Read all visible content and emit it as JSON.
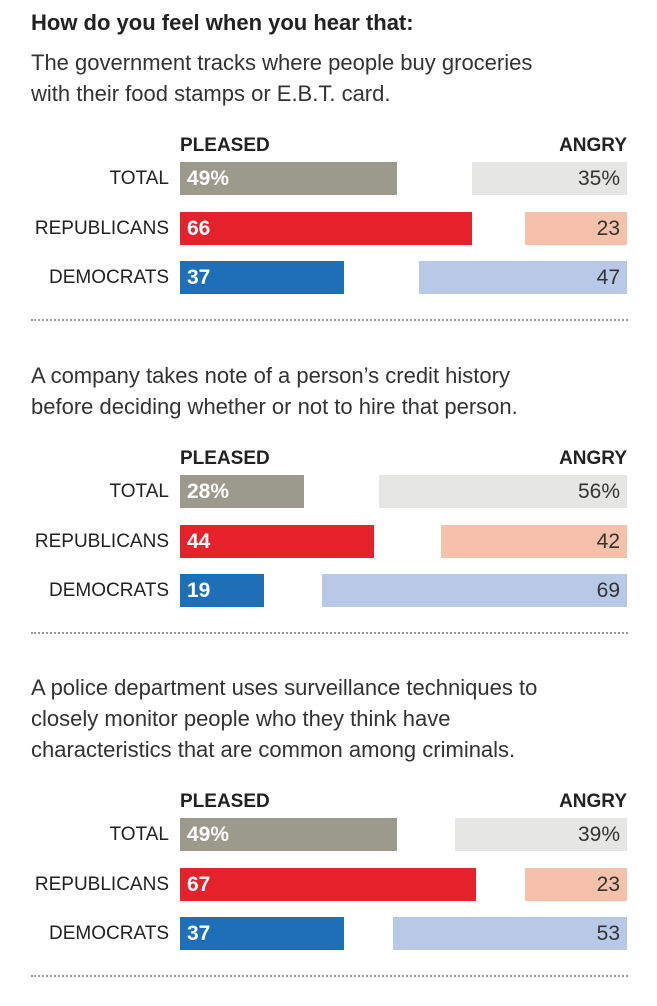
{
  "title": "How do you feel when you hear that:",
  "headers": {
    "pleased": "PLEASED",
    "angry": "ANGRY"
  },
  "colors": {
    "total_pleased": "#9b9a8c",
    "total_angry": "#e6e6e4",
    "rep_pleased": "#e5222c",
    "rep_angry": "#f5c1ab",
    "dem_pleased": "#1d70b8",
    "dem_angry": "#b7c9e6"
  },
  "chart_data": [
    {
      "type": "bar",
      "title": "The government tracks where people buy groceries\nwith their food stamps or E.B.T. card.",
      "categories": [
        "TOTAL",
        "REPUBLICANS",
        "DEMOCRATS"
      ],
      "series": [
        {
          "name": "PLEASED",
          "values": [
            49,
            66,
            37
          ],
          "labels": [
            "49%",
            "66",
            "37"
          ]
        },
        {
          "name": "ANGRY",
          "values": [
            35,
            23,
            47
          ],
          "labels": [
            "35%",
            "23",
            "47"
          ]
        }
      ]
    },
    {
      "type": "bar",
      "title": "A company takes note of a person’s credit history\nbefore deciding whether or not to hire that person.",
      "categories": [
        "TOTAL",
        "REPUBLICANS",
        "DEMOCRATS"
      ],
      "series": [
        {
          "name": "PLEASED",
          "values": [
            28,
            44,
            19
          ],
          "labels": [
            "28%",
            "44",
            "19"
          ]
        },
        {
          "name": "ANGRY",
          "values": [
            56,
            42,
            69
          ],
          "labels": [
            "56%",
            "42",
            "69"
          ]
        }
      ]
    },
    {
      "type": "bar",
      "title": "A police department uses surveillance techniques to\nclosely monitor people who they think have\ncharacteristics that are common among criminals.",
      "categories": [
        "TOTAL",
        "REPUBLICANS",
        "DEMOCRATS"
      ],
      "series": [
        {
          "name": "PLEASED",
          "values": [
            49,
            67,
            37
          ],
          "labels": [
            "49%",
            "67",
            "37"
          ]
        },
        {
          "name": "ANGRY",
          "values": [
            39,
            23,
            53
          ],
          "labels": [
            "39%",
            "23",
            "53"
          ]
        }
      ]
    }
  ]
}
